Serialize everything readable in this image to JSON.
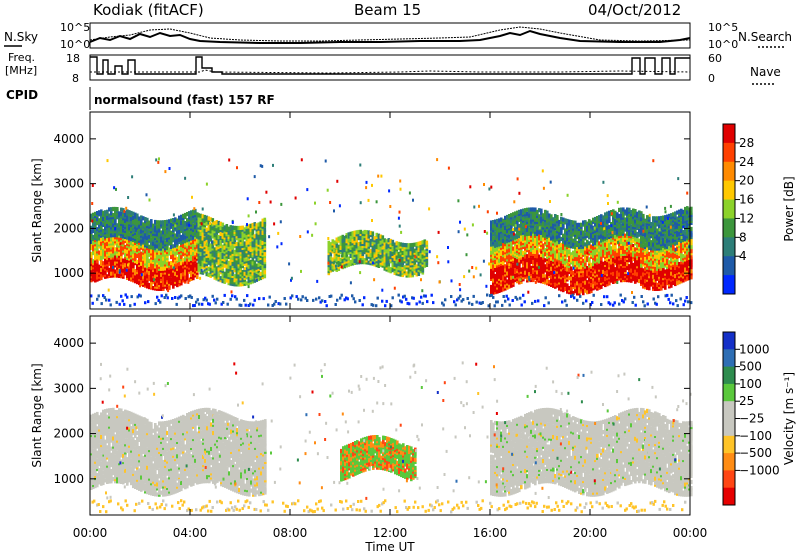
{
  "header": {
    "station": "Kodiak (fitACF)",
    "beam": "Beam 15",
    "date": "04/Oct/2012"
  },
  "top_panels": {
    "nsky_label": "N.Sky",
    "nsearch_label": "N.Search",
    "noise_ticks": [
      "10^5",
      "10^0"
    ],
    "freq_label_1": "Freq.",
    "freq_label_2": "[MHz]",
    "freq_ticks": [
      "18",
      "8"
    ],
    "nave_label": "Nave",
    "nave_ticks": [
      "60",
      "0"
    ],
    "cpid_label": "CPID",
    "cpid_text": "normalsound (fast) 157 RF"
  },
  "power_colorbar": {
    "title": "Power [dB]",
    "ticks": [
      "28",
      "24",
      "20",
      "16",
      "12",
      "8",
      "4"
    ],
    "colors": [
      "#e00000",
      "#ff4000",
      "#ff8a00",
      "#ffc800",
      "#8cd22a",
      "#3c963c",
      "#2d7e78",
      "#1e5aa8",
      "#0028ff"
    ]
  },
  "velocity_colorbar": {
    "title": "Velocity [m s⁻¹]",
    "ticks": [
      "1000",
      "500",
      "100",
      "25",
      "−25",
      "−100",
      "−500",
      "−1000"
    ],
    "colors": [
      "#1430c8",
      "#2e6eb4",
      "#2e8c4e",
      "#5ac83c",
      "#c8c8c0",
      "#c8c8c0",
      "#ffc428",
      "#ff8c14",
      "#ff4614",
      "#e60000"
    ]
  },
  "chart_data": [
    {
      "type": "heatmap",
      "name": "power",
      "ylabel": "Slant Range [km]",
      "ylim": [
        200,
        4600
      ],
      "yticks": [
        1000,
        2000,
        3000,
        4000
      ],
      "xticks": [
        "00:00",
        "04:00",
        "08:00",
        "12:00",
        "16:00",
        "20:00",
        "00:00"
      ],
      "regions": [
        {
          "t0": 0.0,
          "t1": 4.3,
          "r0": 800,
          "r1": 2300,
          "level": "high"
        },
        {
          "t0": 4.3,
          "t1": 7.0,
          "r0": 900,
          "r1": 2200,
          "level": "mid"
        },
        {
          "t0": 9.5,
          "t1": 13.5,
          "r0": 1100,
          "r1": 1800,
          "level": "mid"
        },
        {
          "t0": 16.0,
          "t1": 22.0,
          "r0": 700,
          "r1": 2300,
          "level": "high"
        },
        {
          "t0": 22.0,
          "t1": 24.0,
          "r0": 800,
          "r1": 2400,
          "level": "high"
        }
      ]
    },
    {
      "type": "heatmap",
      "name": "velocity",
      "ylabel": "Slant Range [km]",
      "xlabel": "Time UT",
      "ylim": [
        200,
        4600
      ],
      "yticks": [
        1000,
        2000,
        3000,
        4000
      ],
      "xticks": [
        "00:00",
        "04:00",
        "08:00",
        "12:00",
        "16:00",
        "20:00",
        "00:00"
      ],
      "regions": [
        {
          "t0": 0.0,
          "t1": 7.0,
          "r0": 800,
          "r1": 2400,
          "vel": "near zero"
        },
        {
          "t0": 10.0,
          "t1": 13.0,
          "r0": 1100,
          "r1": 1800,
          "vel": "positive"
        },
        {
          "t0": 16.0,
          "t1": 24.0,
          "r0": 800,
          "r1": 2400,
          "vel": "near zero"
        }
      ]
    }
  ]
}
